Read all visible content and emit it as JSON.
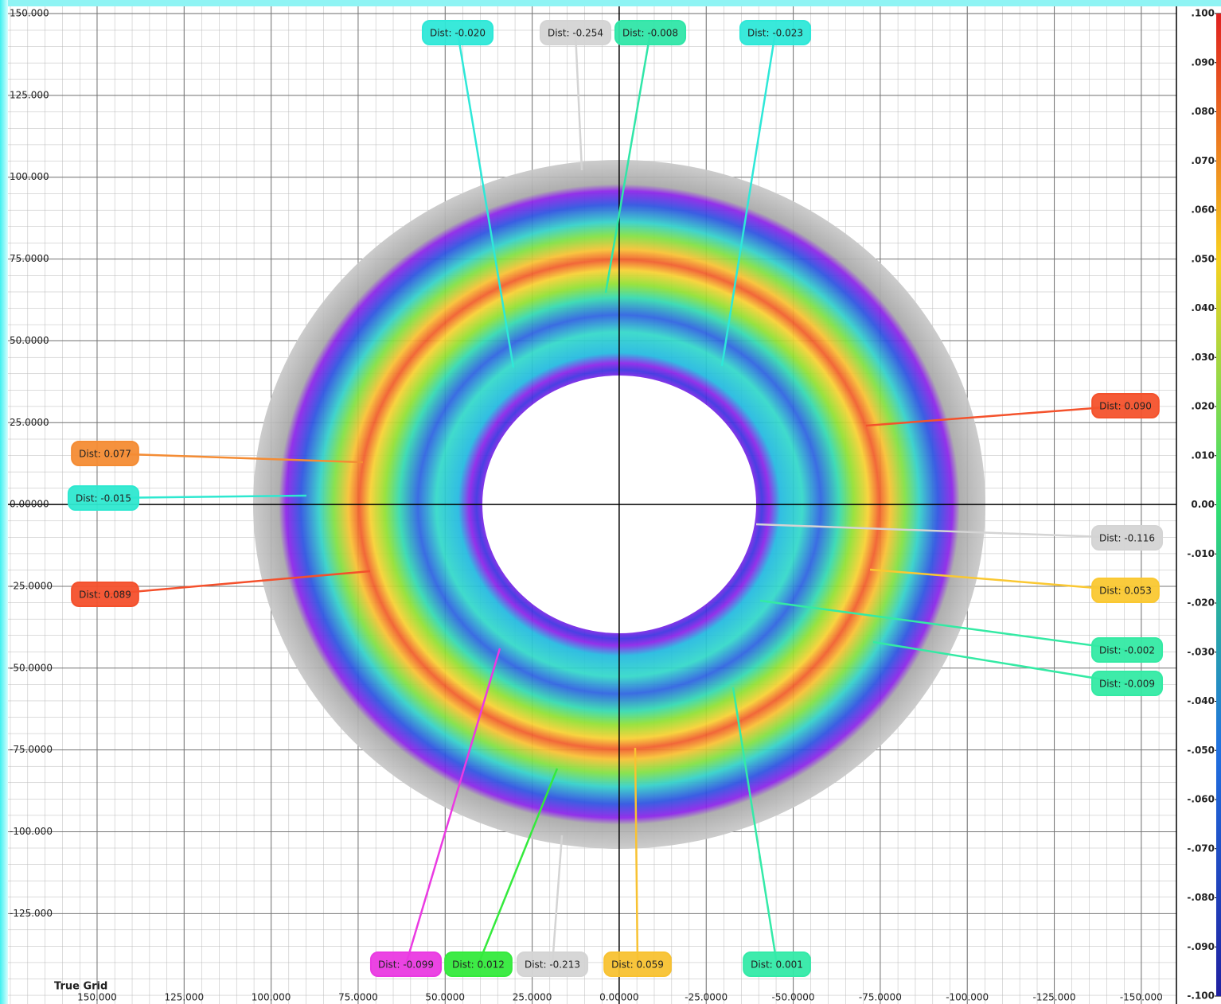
{
  "chart_data": {
    "type": "deviation-map",
    "grid_label": "True Grid",
    "grid": true,
    "xlim": [
      175.6,
      -160.1
    ],
    "ylim": [
      152.2,
      -150.2
    ],
    "xticks": [
      {
        "value": 150,
        "label": "150.000"
      },
      {
        "value": 125,
        "label": "125.000"
      },
      {
        "value": 100,
        "label": "100.000"
      },
      {
        "value": 75,
        "label": "75.0000"
      },
      {
        "value": 50,
        "label": "50.0000"
      },
      {
        "value": 25,
        "label": "25.0000"
      },
      {
        "value": 0,
        "label": "0.00000"
      },
      {
        "value": -25,
        "label": "-25.0000"
      },
      {
        "value": -50,
        "label": "-50.0000"
      },
      {
        "value": -75,
        "label": "-75.0000"
      },
      {
        "value": -100,
        "label": "-100.000"
      },
      {
        "value": -125,
        "label": "-125.000"
      },
      {
        "value": -150,
        "label": "-150.000"
      }
    ],
    "yticks": [
      {
        "value": 150,
        "label": "150.000"
      },
      {
        "value": 125,
        "label": "125.000"
      },
      {
        "value": 100,
        "label": "100.000"
      },
      {
        "value": 75,
        "label": "75.0000"
      },
      {
        "value": 50,
        "label": "50.0000"
      },
      {
        "value": 25,
        "label": "25.0000"
      },
      {
        "value": 0,
        "label": "0.00000"
      },
      {
        "value": -25,
        "label": "-25.0000"
      },
      {
        "value": -50,
        "label": "-50.0000"
      },
      {
        "value": -75,
        "label": "-75.0000"
      },
      {
        "value": -100,
        "label": "-100.000"
      },
      {
        "value": -125,
        "label": "-125.000"
      }
    ],
    "colorbar": {
      "lim": [
        0.1,
        -0.1
      ],
      "ticks": [
        {
          "value": 0.1,
          "label": ".100"
        },
        {
          "value": 0.09,
          "label": ".090"
        },
        {
          "value": 0.08,
          "label": ".080"
        },
        {
          "value": 0.07,
          "label": ".070"
        },
        {
          "value": 0.06,
          "label": ".060"
        },
        {
          "value": 0.05,
          "label": ".050"
        },
        {
          "value": 0.04,
          "label": ".040"
        },
        {
          "value": 0.03,
          "label": ".030"
        },
        {
          "value": 0.02,
          "label": ".020"
        },
        {
          "value": 0.01,
          "label": ".010"
        },
        {
          "value": 0,
          "label": "0.00"
        },
        {
          "value": -0.01,
          "label": "-.010"
        },
        {
          "value": -0.02,
          "label": "-.020"
        },
        {
          "value": -0.03,
          "label": "-.030"
        },
        {
          "value": -0.04,
          "label": "-.040"
        },
        {
          "value": -0.05,
          "label": "-.050"
        },
        {
          "value": -0.06,
          "label": "-.060"
        },
        {
          "value": -0.07,
          "label": "-.070"
        },
        {
          "value": -0.08,
          "label": "-.080"
        },
        {
          "value": -0.09,
          "label": "-.090"
        },
        {
          "value": -0.1,
          "label": "-.100"
        }
      ]
    },
    "callouts": [
      {
        "label": "Dist: -0.020",
        "color": "#2ee8d8"
      },
      {
        "label": "Dist: -0.254",
        "color": "#d4d4d4"
      },
      {
        "label": "Dist: -0.008",
        "color": "#30e6a8"
      },
      {
        "label": "Dist: -0.023",
        "color": "#2ee8d8"
      },
      {
        "label": "Dist: 0.090",
        "color": "#f4522c"
      },
      {
        "label": "Dist: 0.077",
        "color": "#f48c34"
      },
      {
        "label": "Dist: -0.015",
        "color": "#2ee8d0"
      },
      {
        "label": "Dist: -0.116",
        "color": "#d4d4d4"
      },
      {
        "label": "Dist: 0.053",
        "color": "#fac832"
      },
      {
        "label": "Dist: 0.089",
        "color": "#f4502c"
      },
      {
        "label": "Dist: -0.002",
        "color": "#34eaa4"
      },
      {
        "label": "Dist: -0.009",
        "color": "#34eaa4"
      },
      {
        "label": "Dist: -0.099",
        "color": "#ea3ae2"
      },
      {
        "label": "Dist: 0.012",
        "color": "#34ea3c"
      },
      {
        "label": "Dist: -0.213",
        "color": "#d4d4d4"
      },
      {
        "label": "Dist: 0.059",
        "color": "#f8c232"
      },
      {
        "label": "Dist: 0.001",
        "color": "#34eaa8"
      }
    ]
  }
}
